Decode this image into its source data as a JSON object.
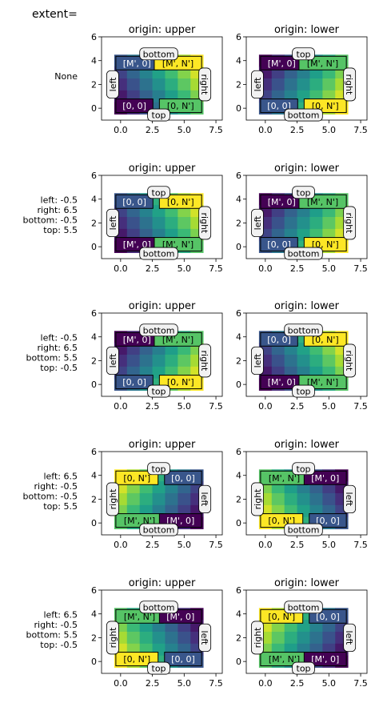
{
  "figure_title": "extent=",
  "colormap": [
    "#440154",
    "#482878",
    "#3e4989",
    "#31688e",
    "#26828e",
    "#1f9e89",
    "#35b779",
    "#6ece58",
    "#b5de2b",
    "#fde725"
  ],
  "chart_data": {
    "type": "heatmap",
    "grid": {
      "rows": 5,
      "cols": 7
    },
    "axis": {
      "xlim": [
        -1.5,
        8.0
      ],
      "ylim": [
        -1.0,
        6.0
      ],
      "xticks": [
        0.0,
        2.5,
        5.0,
        7.5
      ],
      "xtick_labels": [
        "0.0",
        "2.5",
        "5.0",
        "7.5"
      ],
      "yticks": [
        0,
        2,
        4,
        6
      ],
      "ytick_labels": [
        "0",
        "2",
        "4",
        "6"
      ]
    },
    "row_labels": [
      [
        "None"
      ],
      [
        "left: -0.5",
        "right: 6.5",
        "bottom: -0.5",
        "top: 5.5"
      ],
      [
        "left: -0.5",
        "right: 6.5",
        "bottom: 5.5",
        "top: -0.5"
      ],
      [
        "left: 6.5",
        "right: -0.5",
        "bottom: -0.5",
        "top: 5.5"
      ],
      [
        "left: 6.5",
        "right: -0.5",
        "bottom: 5.5",
        "top: -0.5"
      ]
    ],
    "panels": [
      {
        "title": "origin: upper",
        "extent": [
          -0.5,
          6.5,
          4.5,
          -0.5
        ],
        "flip_rows": false,
        "corner_labels": {
          "tl": "[M', 0]",
          "tr": "[M', N']",
          "bl": "[0, 0]",
          "br": "[0, N']"
        },
        "side_labels": {
          "left": "left",
          "right": "right",
          "top": "bottom",
          "bottom": "top"
        }
      },
      {
        "title": "origin: lower",
        "extent": [
          -0.5,
          6.5,
          -0.5,
          4.5
        ],
        "flip_rows": true,
        "corner_labels": {
          "tl": "[M', 0]",
          "tr": "[M', N']",
          "bl": "[0, 0]",
          "br": "[0, N']"
        },
        "side_labels": {
          "left": "left",
          "right": "right",
          "top": "top",
          "bottom": "bottom"
        }
      },
      {
        "title": "origin: upper",
        "extent": [
          -0.5,
          6.5,
          -0.5,
          5.5
        ],
        "flip_rows": false,
        "corner_labels": {
          "tl": "[0, 0]",
          "tr": "[0, N']",
          "bl": "[M', 0]",
          "br": "[M', N']"
        },
        "side_labels": {
          "left": "left",
          "right": "right",
          "top": "top",
          "bottom": "bottom"
        }
      },
      {
        "title": "origin: lower",
        "extent": [
          -0.5,
          6.5,
          -0.5,
          5.5
        ],
        "flip_rows": true,
        "corner_labels": {
          "tl": "[M', 0]",
          "tr": "[M', N']",
          "bl": "[0, 0]",
          "br": "[0, N']"
        },
        "side_labels": {
          "left": "left",
          "right": "right",
          "top": "top",
          "bottom": "bottom"
        }
      },
      {
        "title": "origin: upper",
        "extent": [
          -0.5,
          6.5,
          5.5,
          -0.5
        ],
        "flip_rows": true,
        "corner_labels": {
          "tl": "[M', 0]",
          "tr": "[M', N']",
          "bl": "[0, 0]",
          "br": "[0, N']"
        },
        "side_labels": {
          "left": "left",
          "right": "right",
          "top": "bottom",
          "bottom": "top"
        }
      },
      {
        "title": "origin: lower",
        "extent": [
          -0.5,
          6.5,
          5.5,
          -0.5
        ],
        "flip_rows": false,
        "corner_labels": {
          "tl": "[0, 0]",
          "tr": "[0, N']",
          "bl": "[M', 0]",
          "br": "[M', N']"
        },
        "side_labels": {
          "left": "left",
          "right": "right",
          "top": "bottom",
          "bottom": "top"
        }
      },
      {
        "title": "origin: upper",
        "extent": [
          6.5,
          -0.5,
          -0.5,
          5.5
        ],
        "flip_rows": false,
        "flip_cols": true,
        "corner_labels": {
          "tl": "[0, N']",
          "tr": "[0, 0]",
          "bl": "[M', N']",
          "br": "[M', 0]"
        },
        "side_labels": {
          "left": "right",
          "right": "left",
          "top": "top",
          "bottom": "bottom"
        }
      },
      {
        "title": "origin: lower",
        "extent": [
          6.5,
          -0.5,
          -0.5,
          5.5
        ],
        "flip_rows": true,
        "flip_cols": true,
        "corner_labels": {
          "tl": "[M', N']",
          "tr": "[M', 0]",
          "bl": "[0, N']",
          "br": "[0, 0]"
        },
        "side_labels": {
          "left": "right",
          "right": "left",
          "top": "top",
          "bottom": "bottom"
        }
      },
      {
        "title": "origin: upper",
        "extent": [
          6.5,
          -0.5,
          5.5,
          -0.5
        ],
        "flip_rows": true,
        "flip_cols": true,
        "corner_labels": {
          "tl": "[M', N']",
          "tr": "[M', 0]",
          "bl": "[0, N']",
          "br": "[0, 0]"
        },
        "side_labels": {
          "left": "right",
          "right": "left",
          "top": "bottom",
          "bottom": "top"
        }
      },
      {
        "title": "origin: lower",
        "extent": [
          6.5,
          -0.5,
          5.5,
          -0.5
        ],
        "flip_rows": false,
        "flip_cols": true,
        "corner_labels": {
          "tl": "[0, N']",
          "tr": "[0, 0]",
          "bl": "[M', N']",
          "br": "[M', 0]"
        },
        "side_labels": {
          "left": "right",
          "right": "left",
          "top": "bottom",
          "bottom": "top"
        }
      }
    ]
  }
}
